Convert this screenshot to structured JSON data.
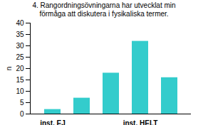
{
  "chart_data": {
    "type": "bar",
    "title": "4. Rangordningsövningarna har utvecklat min förmåga att diskutera i fysikaliska termer.",
    "ylabel": "n",
    "categories": [
      "inst. EJ",
      null,
      null,
      "inst. HELT",
      null
    ],
    "values": [
      2,
      7,
      18,
      32,
      16
    ],
    "color": "#33cccc",
    "ylim": [
      0,
      40
    ],
    "yticks": [
      0,
      5,
      10,
      15,
      20,
      25,
      30,
      35,
      40
    ],
    "grid": false
  }
}
